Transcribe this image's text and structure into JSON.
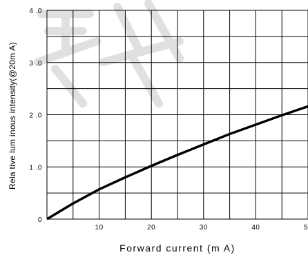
{
  "chart_data": {
    "type": "line",
    "title": "",
    "xlabel": "Forward  current (m A)",
    "ylabel": "Rela tive lum inous intensity(@20m A)",
    "xlim": [
      0,
      50
    ],
    "ylim": [
      0,
      4
    ],
    "x_ticks": [
      "10",
      "20",
      "30",
      "40",
      "50"
    ],
    "y_ticks": [
      "0",
      "1 .0",
      "2 .0",
      "3 .0",
      "4 .0"
    ],
    "grid": true,
    "x": [
      0,
      5,
      10,
      15,
      20,
      25,
      30,
      35,
      40,
      45,
      50
    ],
    "series": [
      {
        "values": [
          0,
          0.3,
          0.57,
          0.8,
          1.02,
          1.23,
          1.43,
          1.63,
          1.81,
          1.99,
          2.16
        ]
      }
    ],
    "line_color": "#000000",
    "watermark_text": "深圳"
  }
}
